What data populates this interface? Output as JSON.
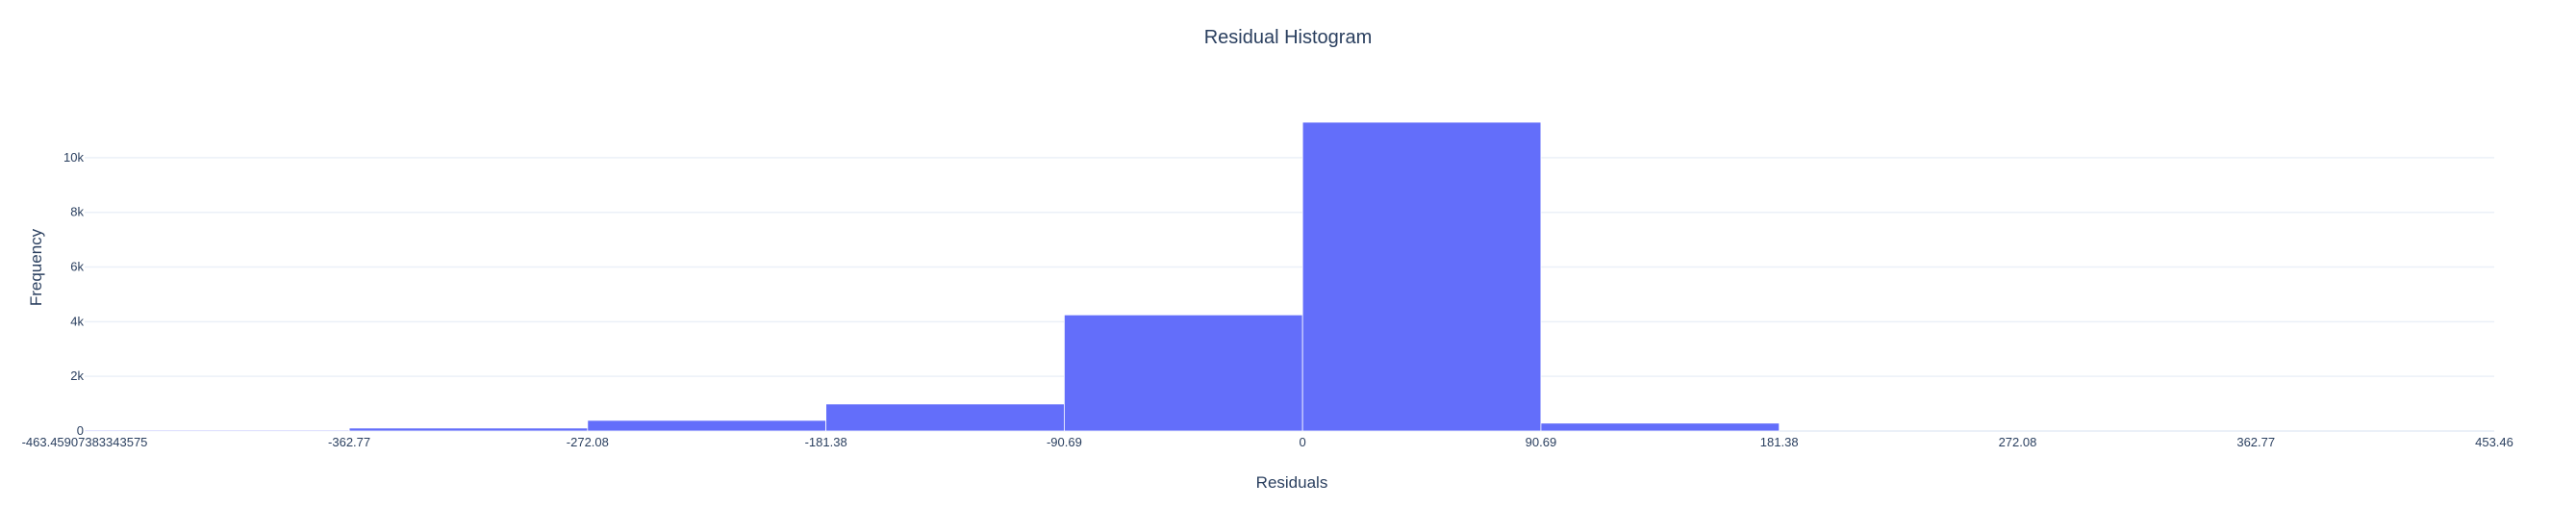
{
  "chart_data": {
    "type": "bar",
    "title": "Residual Histogram",
    "xlabel": "Residuals",
    "ylabel": "Frequency",
    "bin_edges": [
      -463.45907383343575,
      -362.77,
      -272.08,
      -181.38,
      -90.69,
      0,
      90.69,
      181.38,
      272.08,
      362.77,
      453.46
    ],
    "values": [
      25,
      110,
      390,
      990,
      4250,
      11300,
      290,
      0,
      0,
      0
    ],
    "xlim": [
      -463.45907383343575,
      453.46
    ],
    "ylim": [
      0,
      11300
    ],
    "x_ticks": [
      {
        "value": -463.45907383343575,
        "label": "-463.45907383343575"
      },
      {
        "value": -362.77,
        "label": "-362.77"
      },
      {
        "value": -272.08,
        "label": "-272.08"
      },
      {
        "value": -181.38,
        "label": "-181.38"
      },
      {
        "value": -90.69,
        "label": "-90.69"
      },
      {
        "value": 0,
        "label": "0"
      },
      {
        "value": 90.69,
        "label": "90.69"
      },
      {
        "value": 181.38,
        "label": "181.38"
      },
      {
        "value": 272.08,
        "label": "272.08"
      },
      {
        "value": 362.77,
        "label": "362.77"
      },
      {
        "value": 453.46,
        "label": "453.46"
      }
    ],
    "y_ticks": [
      {
        "value": 0,
        "label": "0"
      },
      {
        "value": 2000,
        "label": "2k"
      },
      {
        "value": 4000,
        "label": "4k"
      },
      {
        "value": 6000,
        "label": "6k"
      },
      {
        "value": 8000,
        "label": "8k"
      },
      {
        "value": 10000,
        "label": "10k"
      }
    ],
    "grid": true,
    "colors": {
      "bar": "#636efa",
      "bar_outline": "#ffffff",
      "grid": "#ebf0f8",
      "text": "#2a3f5f"
    }
  }
}
